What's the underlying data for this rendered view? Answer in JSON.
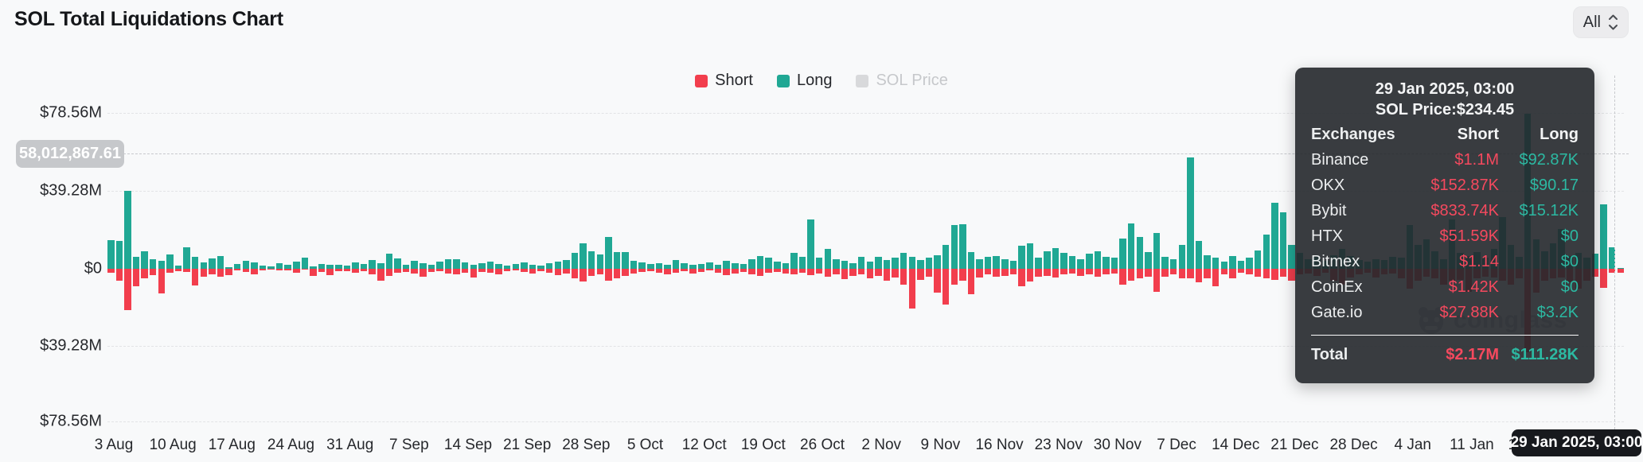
{
  "header": {
    "title": "SOL Total Liquidations Chart",
    "range_selector": {
      "value": "All"
    }
  },
  "legend": {
    "items": [
      {
        "label": "Short",
        "color": "#F23E4D",
        "active": true
      },
      {
        "label": "Long",
        "color": "#20A894",
        "active": true
      },
      {
        "label": "SOL Price",
        "color": "#D8D9DB",
        "active": false
      }
    ]
  },
  "y_axis": {
    "labels": [
      "$78.56M",
      "$39.28M",
      "$0",
      "$39.28M",
      "$78.56M"
    ]
  },
  "x_axis": {
    "labels": [
      "3 Aug",
      "10 Aug",
      "17 Aug",
      "24 Aug",
      "31 Aug",
      "7 Sep",
      "14 Sep",
      "21 Sep",
      "28 Sep",
      "5 Oct",
      "12 Oct",
      "19 Oct",
      "26 Oct",
      "2 Nov",
      "9 Nov",
      "16 Nov",
      "23 Nov",
      "30 Nov",
      "7 Dec",
      "14 Dec",
      "21 Dec",
      "28 Dec",
      "4 Jan",
      "11 Jan",
      "18 Jan"
    ]
  },
  "crosshair": {
    "y_value": "58,012,867.61",
    "x_value": "29 Jan 2025, 03:00"
  },
  "watermark": {
    "text": "coinglass"
  },
  "tooltip": {
    "date": "29 Jan 2025, 03:00",
    "sol_price": "SOL Price:$234.45",
    "columns": [
      "Exchanges",
      "Short",
      "Long"
    ],
    "rows": [
      {
        "exchange": "Binance",
        "short": "$1.1M",
        "long": "$92.87K"
      },
      {
        "exchange": "OKX",
        "short": "$152.87K",
        "long": "$90.17"
      },
      {
        "exchange": "Bybit",
        "short": "$833.74K",
        "long": "$15.12K"
      },
      {
        "exchange": "HTX",
        "short": "$51.59K",
        "long": "$0"
      },
      {
        "exchange": "Bitmex",
        "short": "$1.14",
        "long": "$0"
      },
      {
        "exchange": "CoinEx",
        "short": "$1.42K",
        "long": "$0"
      },
      {
        "exchange": "Gate.io",
        "short": "$27.88K",
        "long": "$3.2K"
      }
    ],
    "total": {
      "label": "Total",
      "short": "$2.17M",
      "long": "$111.28K"
    }
  },
  "chart_data": {
    "type": "bar",
    "title": "SOL Total Liquidations Chart",
    "interval": "daily",
    "x_range": "3 Aug 2024 - 29 Jan 2025",
    "unit": "USD millions (estimated from axis; short plotted downward, long upward)",
    "ylim_musd": [
      -78.56,
      78.56
    ],
    "y_ticks": [
      "$78.56M",
      "$39.28M",
      "$0",
      "$39.28M",
      "$78.56M"
    ],
    "x_tick_labels": [
      "3 Aug",
      "10 Aug",
      "17 Aug",
      "24 Aug",
      "31 Aug",
      "7 Sep",
      "14 Sep",
      "21 Sep",
      "28 Sep",
      "5 Oct",
      "12 Oct",
      "19 Oct",
      "26 Oct",
      "2 Nov",
      "9 Nov",
      "16 Nov",
      "23 Nov",
      "30 Nov",
      "7 Dec",
      "14 Dec",
      "21 Dec",
      "28 Dec",
      "4 Jan",
      "11 Jan",
      "18 Jan"
    ],
    "legend_position": "top-center",
    "grid": "horizontal-dashed",
    "hovered_point": {
      "date": "29 Jan 2025, 03:00",
      "sol_price": "$234.45",
      "total_short": "$2.17M",
      "total_long": "$111.28K"
    },
    "series": [
      {
        "name": "Long",
        "color": "#20A894",
        "direction": "up",
        "values_musd": [
          14.4,
          14.0,
          39.3,
          6.0,
          8.7,
          4.7,
          4.0,
          7.4,
          1.7,
          10.7,
          6.0,
          3.3,
          5.4,
          6.4,
          0.7,
          2.3,
          4.2,
          3.3,
          1.7,
          1.3,
          2.7,
          2.0,
          3.6,
          5.6,
          1.3,
          2.4,
          2.1,
          2.0,
          1.7,
          3.3,
          2.5,
          4.5,
          3.0,
          7.8,
          5.2,
          2.0,
          4.1,
          3.0,
          2.2,
          3.5,
          5.0,
          4.8,
          3.2,
          2.0,
          2.8,
          3.6,
          2.4,
          1.8,
          2.6,
          3.4,
          2.2,
          1.6,
          2.8,
          3.8,
          4.6,
          8.0,
          13.0,
          9.0,
          7.3,
          16.1,
          8.5,
          8.5,
          4.0,
          3.2,
          2.4,
          3.0,
          2.2,
          4.4,
          3.0,
          2.0,
          2.6,
          3.4,
          2.0,
          4.2,
          3.0,
          2.4,
          5.0,
          6.5,
          5.5,
          3.5,
          3.0,
          8.0,
          6.0,
          25.0,
          5.5,
          10.0,
          5.0,
          4.2,
          3.0,
          6.2,
          3.5,
          6.0,
          4.5,
          5.8,
          8.0,
          6.0,
          4.5,
          5.5,
          7.0,
          12.0,
          22.0,
          22.5,
          8.5,
          5.0,
          6.0,
          6.5,
          5.0,
          4.2,
          11.6,
          13.0,
          5.5,
          9.0,
          10.5,
          8.0,
          6.5,
          5.0,
          7.7,
          9.0,
          6.0,
          5.5,
          15.5,
          23.0,
          16.0,
          8.6,
          18.0,
          6.0,
          5.0,
          12.0,
          56.5,
          14.2,
          7.0,
          5.5,
          3.5,
          6.5,
          4.0,
          5.5,
          9.3,
          17.3,
          33.4,
          28.6,
          12.0,
          8.0,
          5.0,
          6.0,
          4.0,
          7.0,
          10.0,
          6.5,
          4.5,
          3.5,
          5.0,
          4.5,
          6.0,
          5.5,
          22.0,
          12.0,
          15.0,
          9.0,
          5.0,
          25.0,
          8.0,
          6.5,
          8.5,
          5.5,
          10.0,
          26.0,
          12.0,
          6.0,
          78.5,
          15.0,
          9.0,
          13.0,
          20.0,
          6.5,
          8.0,
          5.5,
          7.5,
          32.6,
          11.0,
          0.11
        ]
      },
      {
        "name": "Short",
        "color": "#F23E4D",
        "direction": "down",
        "values_musd": [
          2.0,
          6.0,
          21.0,
          8.8,
          4.7,
          3.1,
          12.5,
          2.0,
          1.3,
          1.7,
          8.5,
          4.0,
          2.7,
          4.0,
          3.3,
          1.0,
          1.7,
          2.7,
          0.7,
          0.4,
          1.0,
          0.7,
          2.0,
          0.4,
          3.6,
          1.5,
          3.3,
          1.3,
          1.1,
          2.0,
          1.4,
          2.8,
          6.2,
          3.5,
          2.2,
          1.5,
          2.6,
          4.2,
          1.8,
          1.2,
          2.4,
          3.0,
          2.0,
          4.4,
          1.6,
          2.2,
          2.8,
          1.4,
          1.0,
          1.8,
          2.5,
          1.2,
          2.0,
          3.2,
          2.6,
          5.0,
          6.5,
          3.5,
          3.0,
          6.0,
          5.0,
          3.5,
          2.6,
          1.8,
          1.2,
          2.2,
          3.0,
          2.0,
          1.4,
          2.6,
          1.8,
          1.0,
          2.2,
          3.2,
          2.4,
          1.6,
          2.8,
          3.6,
          2.2,
          1.8,
          2.6,
          3.0,
          2.0,
          3.2,
          2.4,
          4.0,
          3.0,
          5.2,
          3.8,
          3.0,
          5.0,
          3.8,
          6.2,
          4.5,
          8.0,
          20.3,
          5.5,
          4.0,
          12.0,
          18.0,
          8.0,
          6.0,
          13.0,
          4.5,
          3.0,
          4.0,
          3.5,
          2.8,
          9.0,
          6.5,
          4.0,
          3.5,
          4.5,
          3.0,
          2.5,
          3.5,
          3.0,
          4.0,
          3.0,
          2.5,
          8.0,
          6.0,
          5.0,
          4.0,
          11.6,
          4.0,
          3.0,
          5.0,
          5.0,
          7.0,
          4.8,
          9.0,
          3.0,
          5.0,
          2.0,
          3.0,
          4.0,
          5.0,
          5.6,
          4.0,
          6.0,
          3.0,
          2.5,
          3.5,
          2.0,
          6.0,
          8.0,
          4.5,
          3.0,
          2.0,
          4.5,
          3.0,
          2.5,
          5.0,
          10.0,
          6.0,
          4.0,
          5.0,
          8.0,
          6.0,
          5.5,
          11.7,
          5.0,
          4.0,
          4.5,
          6.0,
          8.0,
          5.0,
          42.3,
          12.0,
          6.0,
          5.0,
          4.5,
          7.0,
          10.0,
          6.0,
          4.0,
          9.7,
          2.0,
          2.17
        ]
      },
      {
        "name": "SOL Price",
        "color": "#D8D9DB",
        "visible": false,
        "values_musd": []
      }
    ]
  }
}
